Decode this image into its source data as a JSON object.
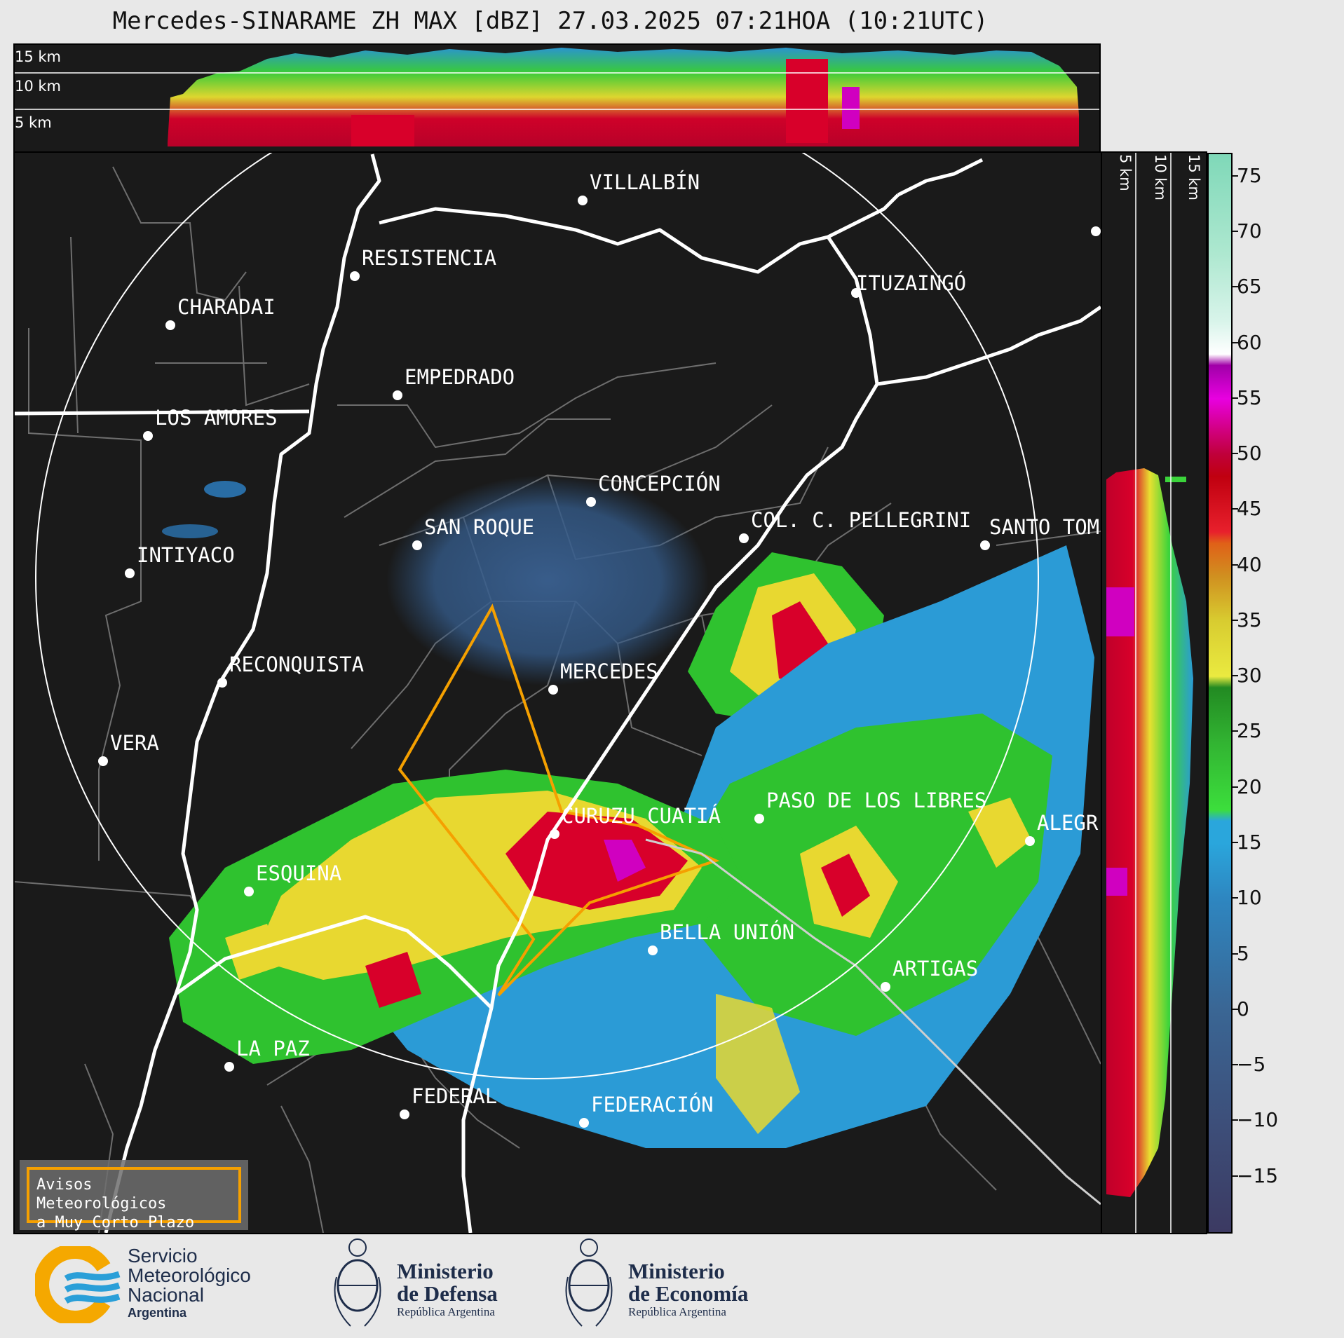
{
  "title": "Mercedes-SINARAME ZH MAX [dBZ] 27.03.2025 07:21HOA (10:21UTC)",
  "height_labels": [
    "15 km",
    "10 km",
    "5 km"
  ],
  "cities": [
    {
      "name": "VILLALBÍN"
    },
    {
      "name": "RESISTENCIA"
    },
    {
      "name": "CHARADAI"
    },
    {
      "name": "ITUZAINGÓ"
    },
    {
      "name": "EMPEDRADO"
    },
    {
      "name": "LOS AMORES"
    },
    {
      "name": "CONCEPCIÓN"
    },
    {
      "name": "COL. C. PELLEGRINI"
    },
    {
      "name": "SANTO TOM"
    },
    {
      "name": "SAN ROQUE"
    },
    {
      "name": "INTIYACO"
    },
    {
      "name": "MERCEDES"
    },
    {
      "name": "RECONQUISTA"
    },
    {
      "name": "VERA"
    },
    {
      "name": "CURUZU CUATIÁ"
    },
    {
      "name": "PASO DE LOS LIBRES"
    },
    {
      "name": "ALEGR"
    },
    {
      "name": "ESQUINA"
    },
    {
      "name": "BELLA UNIÓN"
    },
    {
      "name": "ARTIGAS"
    },
    {
      "name": "LA PAZ"
    },
    {
      "name": "FEDERAL"
    },
    {
      "name": "FEDERACIÓN"
    }
  ],
  "colorbar": {
    "unit": "dBZ",
    "ticks": [
      "75",
      "70",
      "65",
      "60",
      "55",
      "50",
      "45",
      "40",
      "35",
      "30",
      "25",
      "20",
      "15",
      "10",
      "5",
      "0",
      "−5",
      "−10",
      "−15"
    ],
    "min": -20,
    "max": 77
  },
  "warning_box": {
    "line1": "Avisos Meteorológicos",
    "line2": "a Muy Corto Plazo",
    "border_color": "#f5a000"
  },
  "logos": {
    "smn": {
      "line1": "Servicio",
      "line2": "Meteorológico",
      "line3": "Nacional",
      "line4": "Argentina"
    },
    "defensa": {
      "line1": "Ministerio",
      "line2": "de Defensa",
      "line3": "República Argentina"
    },
    "economia": {
      "line1": "Ministerio",
      "line2": "de Economía",
      "line3": "República Argentina"
    }
  }
}
